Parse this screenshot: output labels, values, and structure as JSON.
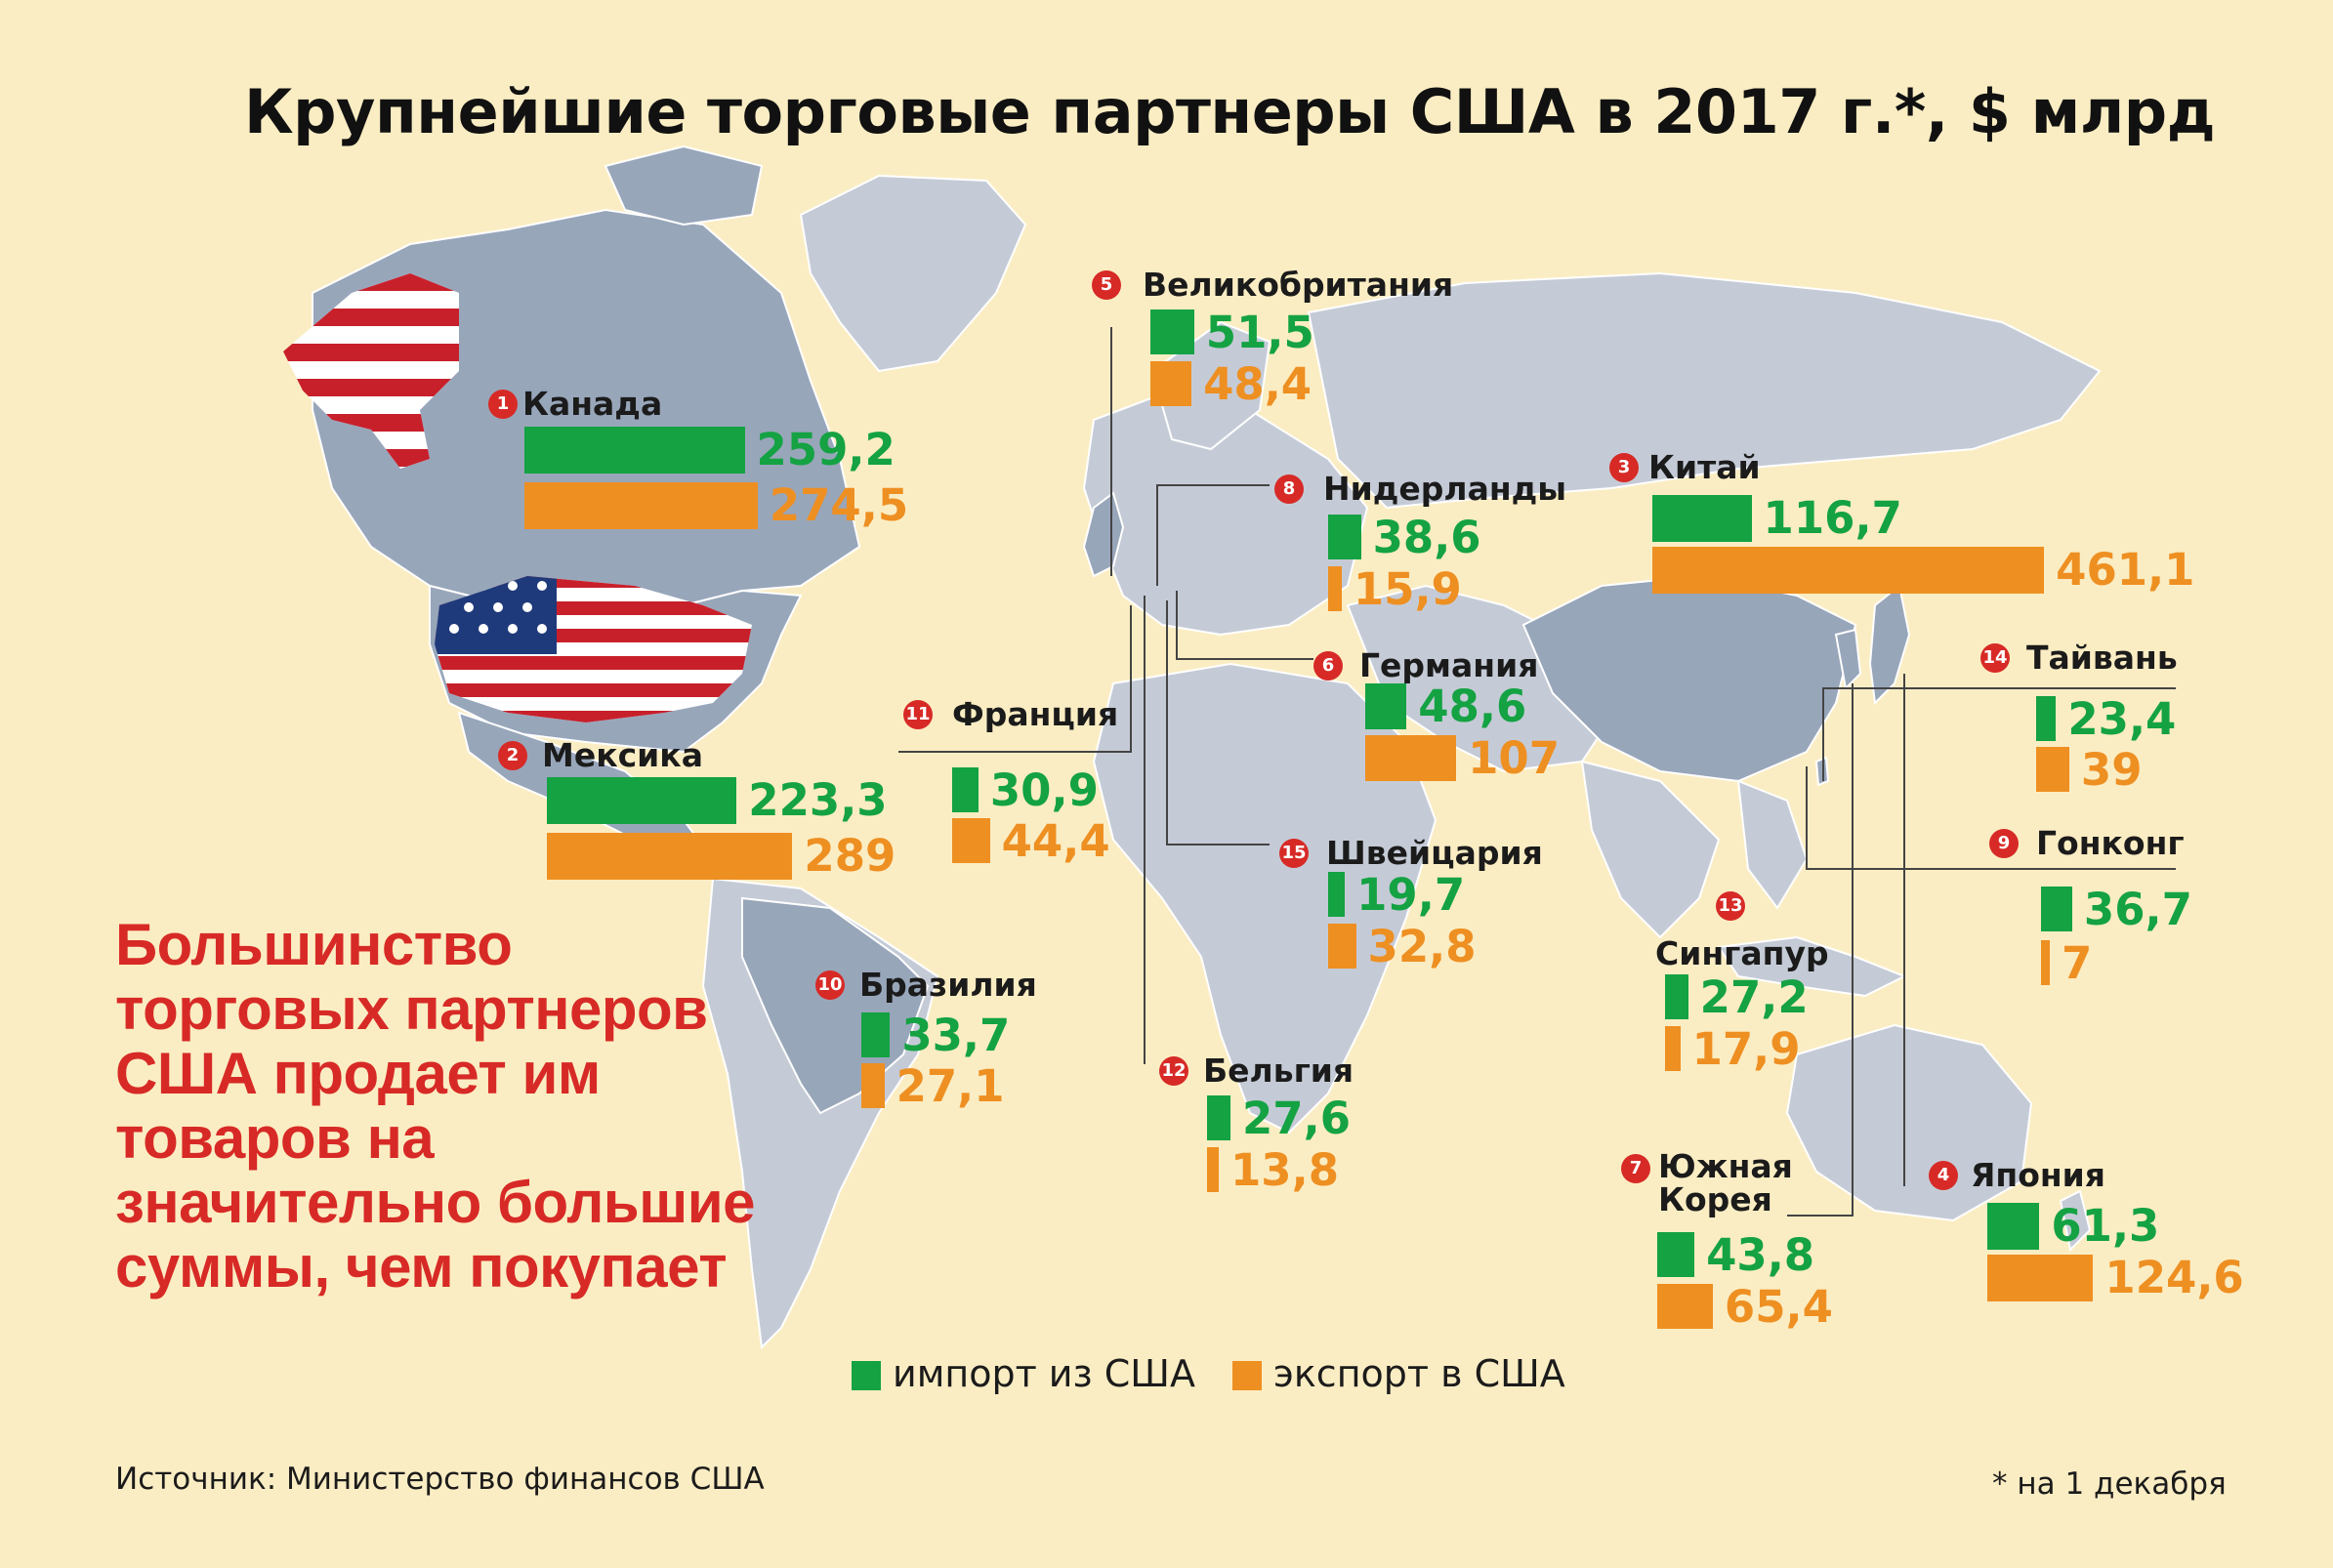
{
  "title": "Крупнейшие торговые партнеры США в 2017 г.*, $ млрд",
  "callout": "Большинство торговых партнеров США продает им товаров на значительно большие суммы, чем покупает",
  "legend": {
    "import": "импорт из США",
    "export": "экспорт в США"
  },
  "source": "Источник: Министерство финансов США",
  "footnote": "* на 1 декабря",
  "colors": {
    "import": "#14a243",
    "export": "#ee8f22",
    "badge": "#d72a26",
    "background": "#fbedc3",
    "land": "#c5cbd6",
    "land_highlight": "#98a6ba"
  },
  "chart_data": {
    "type": "bar",
    "series": [
      {
        "name": "импорт из США",
        "key": "import"
      },
      {
        "name": "экспорт в США",
        "key": "export"
      }
    ],
    "countries": [
      {
        "rank": "1",
        "name": "Канада",
        "import": 259.2,
        "export": 274.5,
        "import_label": "259,2",
        "export_label": "274,5"
      },
      {
        "rank": "2",
        "name": "Мексика",
        "import": 223.3,
        "export": 289,
        "import_label": "223,3",
        "export_label": "289"
      },
      {
        "rank": "3",
        "name": "Китай",
        "import": 116.7,
        "export": 461.1,
        "import_label": "116,7",
        "export_label": "461,1"
      },
      {
        "rank": "4",
        "name": "Япония",
        "import": 61.3,
        "export": 124.6,
        "import_label": "61,3",
        "export_label": "124,6"
      },
      {
        "rank": "5",
        "name": "Великобритания",
        "import": 51.5,
        "export": 48.4,
        "import_label": "51,5",
        "export_label": "48,4"
      },
      {
        "rank": "6",
        "name": "Германия",
        "import": 48.6,
        "export": 107,
        "import_label": "48,6",
        "export_label": "107"
      },
      {
        "rank": "7",
        "name": "Южная Корея",
        "import": 43.8,
        "export": 65.4,
        "import_label": "43,8",
        "export_label": "65,4"
      },
      {
        "rank": "8",
        "name": "Нидерланды",
        "import": 38.6,
        "export": 15.9,
        "import_label": "38,6",
        "export_label": "15,9"
      },
      {
        "rank": "9",
        "name": "Гонконг",
        "import": 36.7,
        "export": 7,
        "import_label": "36,7",
        "export_label": "7"
      },
      {
        "rank": "10",
        "name": "Бразилия",
        "import": 33.7,
        "export": 27.1,
        "import_label": "33,7",
        "export_label": "27,1"
      },
      {
        "rank": "11",
        "name": "Франция",
        "import": 30.9,
        "export": 44.4,
        "import_label": "30,9",
        "export_label": "44,4"
      },
      {
        "rank": "12",
        "name": "Бельгия",
        "import": 27.6,
        "export": 13.8,
        "import_label": "27,6",
        "export_label": "13,8"
      },
      {
        "rank": "13",
        "name": "Сингапур",
        "import": 27.2,
        "export": 17.9,
        "import_label": "27,2",
        "export_label": "17,9"
      },
      {
        "rank": "14",
        "name": "Тайвань",
        "import": 23.4,
        "export": 39,
        "import_label": "23,4",
        "export_label": "39"
      },
      {
        "rank": "15",
        "name": "Швейцария",
        "import": 19.7,
        "export": 32.8,
        "import_label": "19,7",
        "export_label": "32,8"
      }
    ]
  }
}
